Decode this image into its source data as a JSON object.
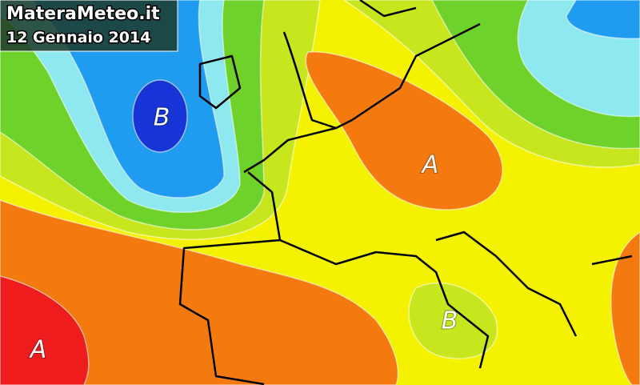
{
  "header": {
    "site": "MateraMeteo.it",
    "date": "12 Gennaio 2014"
  },
  "pressure_labels": [
    {
      "text": "B"
    },
    {
      "text": "A"
    },
    {
      "text": "A"
    },
    {
      "text": "B"
    }
  ]
}
